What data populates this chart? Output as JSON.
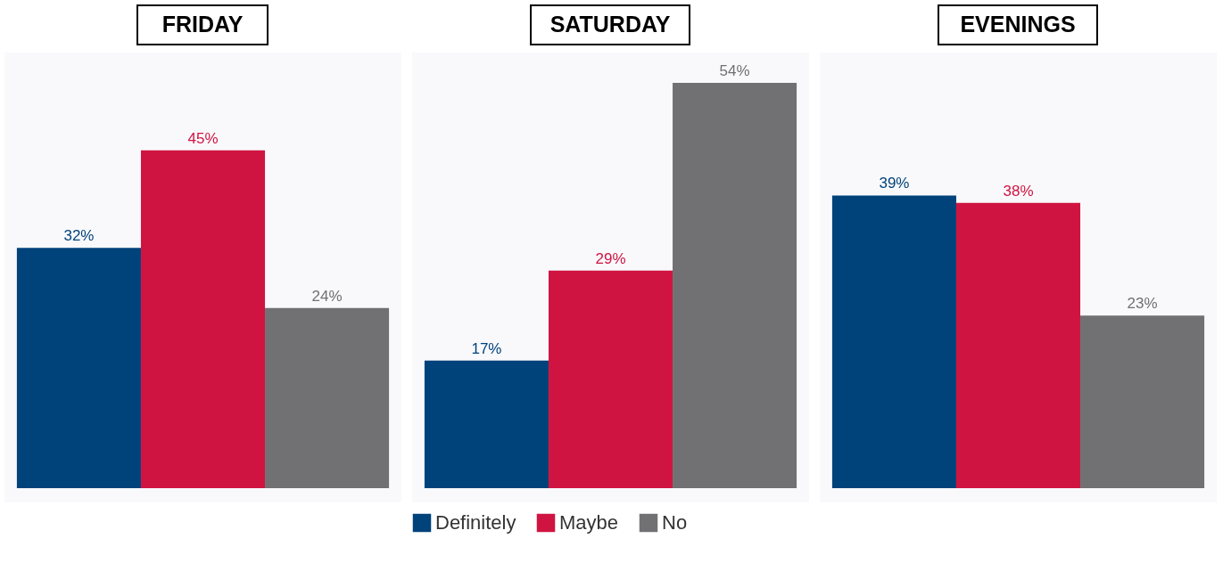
{
  "chart_data": [
    {
      "type": "bar",
      "title": "FRIDAY",
      "categories": [
        null
      ],
      "series": [
        {
          "color": "#00427a",
          "values": [
            32
          ],
          "value_labels": [
            "32%"
          ]
        },
        {
          "color": "#d01441",
          "values": [
            45
          ],
          "value_labels": [
            "45%"
          ]
        },
        {
          "color": "#717073",
          "values": [
            24
          ],
          "value_labels": [
            "24%"
          ]
        }
      ]
    },
    {
      "type": "bar",
      "title": "SATURDAY",
      "categories": [
        null
      ],
      "legend": "bottom",
      "series": [
        {
          "name": "Definitely",
          "color": "#00427a",
          "values": [
            17
          ],
          "value_labels": [
            "17%"
          ]
        },
        {
          "name": "Maybe",
          "color": "#d01441",
          "values": [
            29
          ],
          "value_labels": [
            "29%"
          ]
        },
        {
          "name": "No",
          "color": "#717073",
          "values": [
            54
          ],
          "value_labels": [
            "54%"
          ]
        }
      ]
    },
    {
      "type": "bar",
      "title": "EVENINGS",
      "categories": [
        null
      ],
      "series": [
        {
          "color": "#00427a",
          "values": [
            39
          ],
          "value_labels": [
            "39%"
          ]
        },
        {
          "color": "#d01441",
          "values": [
            38
          ],
          "value_labels": [
            "38%"
          ]
        },
        {
          "color": "#717073",
          "values": [
            23
          ],
          "value_labels": [
            "23%"
          ]
        }
      ]
    }
  ]
}
